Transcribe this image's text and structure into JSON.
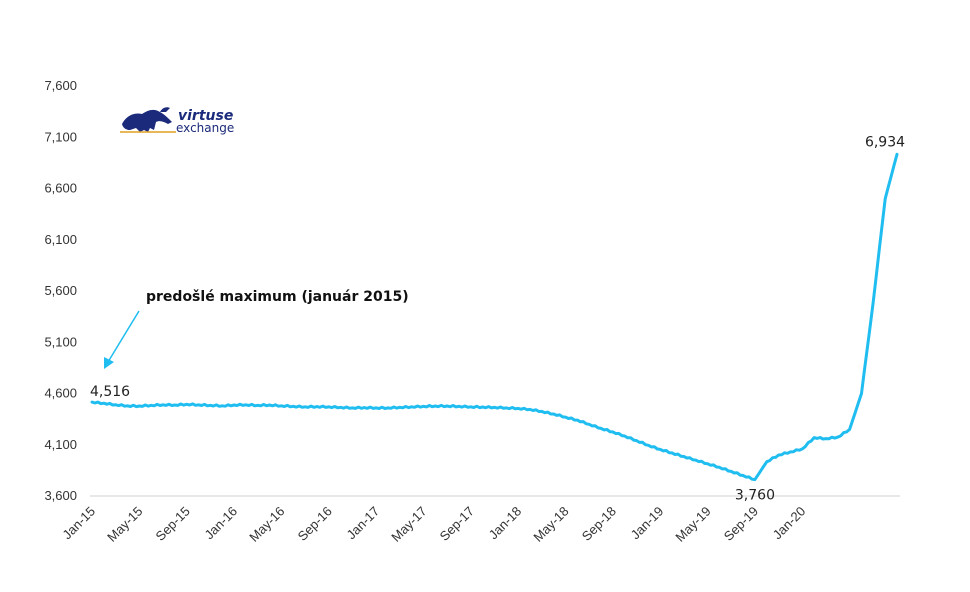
{
  "logo": {
    "line1": "virtuse",
    "line2": "exchange"
  },
  "chart_data": {
    "type": "line",
    "title": "",
    "xlabel": "",
    "ylabel": "",
    "ylim": [
      3600,
      7600
    ],
    "yticks": [
      3600,
      4100,
      4600,
      5100,
      5600,
      6100,
      6600,
      7100,
      7600
    ],
    "ytick_labels": [
      "3,600",
      "4,100",
      "4,600",
      "5,100",
      "5,600",
      "6,100",
      "6,600",
      "7,100",
      "7,600"
    ],
    "xtick_labels": [
      "Jan-15",
      "May-15",
      "Sep-15",
      "Jan-16",
      "May-16",
      "Sep-16",
      "Jan-17",
      "May-17",
      "Sep-17",
      "Jan-18",
      "May-18",
      "Sep-18",
      "Jan-19",
      "May-19",
      "Sep-19",
      "Jan-20"
    ],
    "x_start": "2015-01",
    "x_end": "2020-05",
    "series": [
      {
        "color": "#1fbdf0",
        "values": [
          [
            "2015-01",
            4516
          ],
          [
            "2015-02",
            4505
          ],
          [
            "2015-03",
            4490
          ],
          [
            "2015-04",
            4480
          ],
          [
            "2015-05",
            4478
          ],
          [
            "2015-06",
            4485
          ],
          [
            "2015-07",
            4490
          ],
          [
            "2015-08",
            4488
          ],
          [
            "2015-09",
            4495
          ],
          [
            "2015-10",
            4490
          ],
          [
            "2015-11",
            4485
          ],
          [
            "2015-12",
            4480
          ],
          [
            "2016-01",
            4488
          ],
          [
            "2016-02",
            4490
          ],
          [
            "2016-03",
            4485
          ],
          [
            "2016-04",
            4488
          ],
          [
            "2016-05",
            4480
          ],
          [
            "2016-06",
            4475
          ],
          [
            "2016-07",
            4470
          ],
          [
            "2016-08",
            4472
          ],
          [
            "2016-09",
            4470
          ],
          [
            "2016-10",
            4465
          ],
          [
            "2016-11",
            4460
          ],
          [
            "2016-12",
            4462
          ],
          [
            "2017-01",
            4460
          ],
          [
            "2017-02",
            4460
          ],
          [
            "2017-03",
            4465
          ],
          [
            "2017-04",
            4470
          ],
          [
            "2017-05",
            4475
          ],
          [
            "2017-06",
            4478
          ],
          [
            "2017-07",
            4478
          ],
          [
            "2017-08",
            4475
          ],
          [
            "2017-09",
            4470
          ],
          [
            "2017-10",
            4468
          ],
          [
            "2017-11",
            4465
          ],
          [
            "2017-12",
            4460
          ],
          [
            "2018-01",
            4455
          ],
          [
            "2018-02",
            4445
          ],
          [
            "2018-03",
            4425
          ],
          [
            "2018-04",
            4400
          ],
          [
            "2018-05",
            4370
          ],
          [
            "2018-06",
            4340
          ],
          [
            "2018-07",
            4300
          ],
          [
            "2018-08",
            4260
          ],
          [
            "2018-09",
            4225
          ],
          [
            "2018-10",
            4185
          ],
          [
            "2018-11",
            4140
          ],
          [
            "2018-12",
            4095
          ],
          [
            "2019-01",
            4055
          ],
          [
            "2019-02",
            4020
          ],
          [
            "2019-03",
            3985
          ],
          [
            "2019-04",
            3950
          ],
          [
            "2019-05",
            3915
          ],
          [
            "2019-06",
            3880
          ],
          [
            "2019-07",
            3840
          ],
          [
            "2019-08",
            3800
          ],
          [
            "2019-09",
            3760
          ],
          [
            "2019-10",
            3935
          ],
          [
            "2019-11",
            4000
          ],
          [
            "2019-12",
            4030
          ],
          [
            "2020-01",
            4060
          ],
          [
            "2020-02",
            4170
          ],
          [
            "2020-03",
            4160
          ],
          [
            "2020-04",
            4175
          ],
          [
            "2020-05",
            4250
          ],
          [
            "2020-06",
            4600
          ],
          [
            "2020-07",
            5500
          ],
          [
            "2020-08",
            6500
          ],
          [
            "2020-09",
            6934
          ]
        ]
      }
    ],
    "data_labels": [
      {
        "x": "2015-01",
        "y": 4516,
        "text": "4,516"
      },
      {
        "x": "2019-09",
        "y": 3760,
        "text": "3,760"
      },
      {
        "x": "2020-09",
        "y": 6934,
        "text": "6,934"
      }
    ],
    "annotation": {
      "text": "predošlé maximum (január 2015)"
    },
    "grid": false,
    "legend": "none"
  }
}
